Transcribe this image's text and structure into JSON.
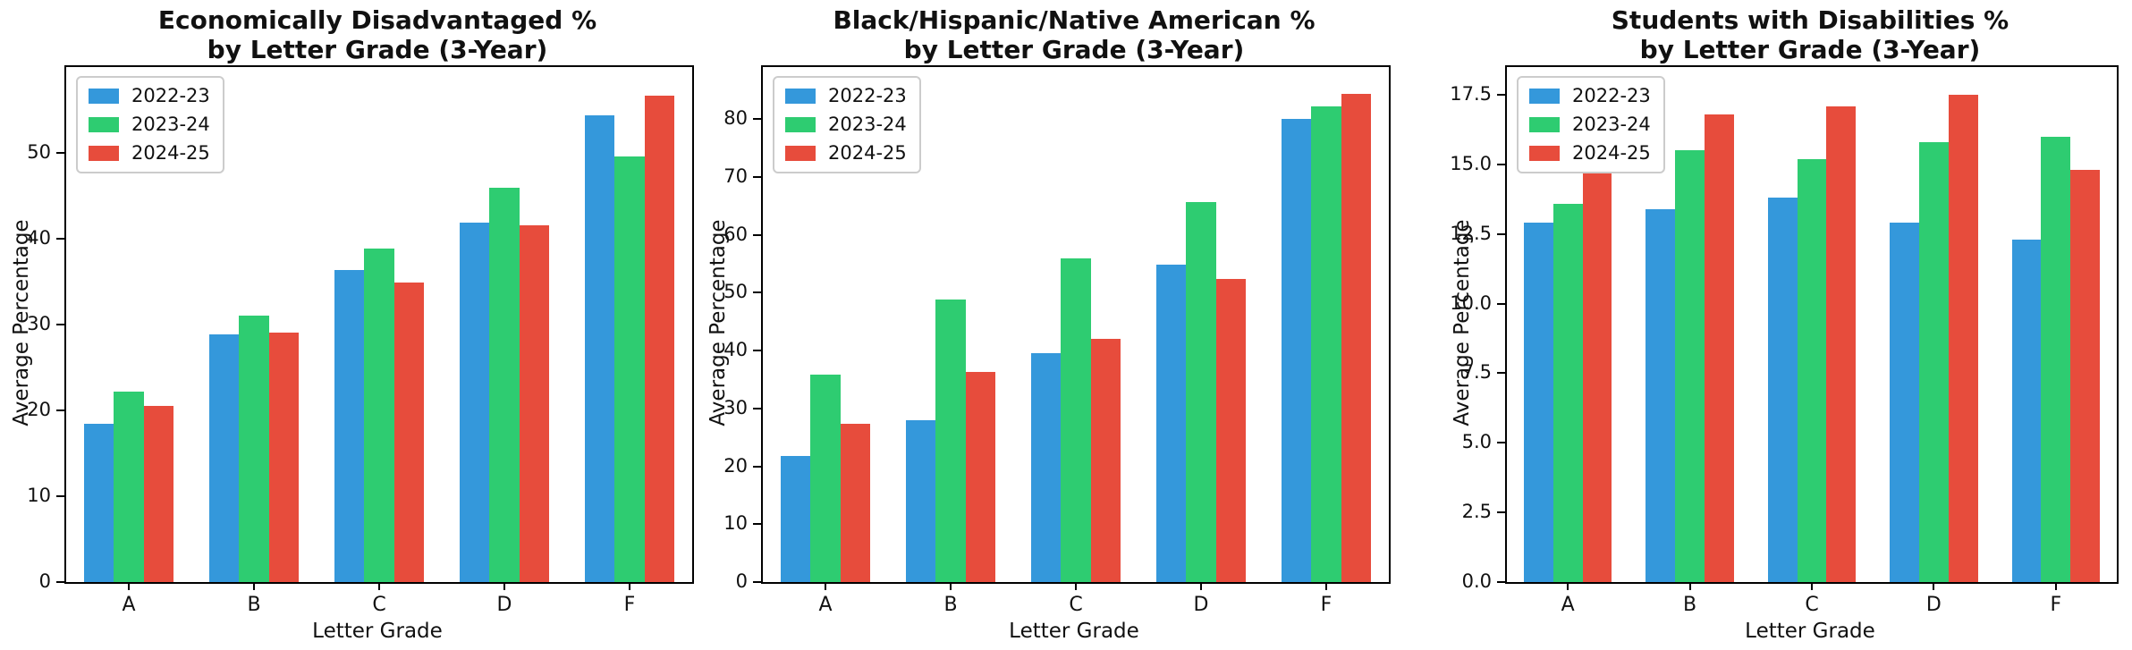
{
  "figure": {
    "background": "#ffffff",
    "spine_color": "#000000",
    "legend_border_color": "#cccccc",
    "series_colors": {
      "2022-23": "#3498db",
      "2023-24": "#2ecc71",
      "2024-25": "#e74c3c"
    }
  },
  "chart_data": [
    {
      "type": "bar",
      "title_line1": "Economically Disadvantaged %",
      "title_line2": "by Letter Grade (3-Year)",
      "xlabel": "Letter Grade",
      "ylabel": "Average Percentage",
      "categories": [
        "A",
        "B",
        "C",
        "D",
        "F"
      ],
      "series": [
        {
          "name": "2022-23",
          "color": "#3498db",
          "values": [
            18.4,
            28.9,
            36.4,
            41.9,
            54.4
          ]
        },
        {
          "name": "2023-24",
          "color": "#2ecc71",
          "values": [
            22.2,
            31.0,
            38.9,
            45.9,
            49.6
          ]
        },
        {
          "name": "2024-25",
          "color": "#e74c3c",
          "values": [
            20.5,
            29.1,
            34.9,
            41.6,
            56.7
          ]
        }
      ],
      "ylim": [
        0,
        60
      ],
      "yticks": [
        0,
        10,
        20,
        30,
        40,
        50
      ],
      "ytick_format": "int",
      "legend_position": "upper left",
      "grid": false
    },
    {
      "type": "bar",
      "title_line1": "Black/Hispanic/Native American %",
      "title_line2": "by Letter Grade (3-Year)",
      "xlabel": "Letter Grade",
      "ylabel": "Average Percentage",
      "categories": [
        "A",
        "B",
        "C",
        "D",
        "F"
      ],
      "series": [
        {
          "name": "2022-23",
          "color": "#3498db",
          "values": [
            21.8,
            27.9,
            39.5,
            54.9,
            80.0
          ]
        },
        {
          "name": "2023-24",
          "color": "#2ecc71",
          "values": [
            35.8,
            48.8,
            55.9,
            65.7,
            82.2
          ]
        },
        {
          "name": "2024-25",
          "color": "#e74c3c",
          "values": [
            27.3,
            36.3,
            42.0,
            52.4,
            84.4
          ]
        }
      ],
      "ylim": [
        0,
        89
      ],
      "yticks": [
        0,
        10,
        20,
        30,
        40,
        50,
        60,
        70,
        80
      ],
      "ytick_format": "int",
      "legend_position": "upper left",
      "grid": false
    },
    {
      "type": "bar",
      "title_line1": "Students with Disabilities %",
      "title_line2": "by Letter Grade (3-Year)",
      "xlabel": "Letter Grade",
      "ylabel": "Average Percentage",
      "categories": [
        "A",
        "B",
        "C",
        "D",
        "F"
      ],
      "series": [
        {
          "name": "2022-23",
          "color": "#3498db",
          "values": [
            12.9,
            13.4,
            13.8,
            12.9,
            12.3
          ]
        },
        {
          "name": "2023-24",
          "color": "#2ecc71",
          "values": [
            13.6,
            15.5,
            15.2,
            15.8,
            16.0
          ]
        },
        {
          "name": "2024-25",
          "color": "#e74c3c",
          "values": [
            14.9,
            16.8,
            17.1,
            17.5,
            14.8
          ]
        }
      ],
      "ylim": [
        0,
        18.5
      ],
      "yticks": [
        0.0,
        2.5,
        5.0,
        7.5,
        10.0,
        12.5,
        15.0,
        17.5
      ],
      "ytick_format": "dec1",
      "legend_position": "upper left",
      "grid": false
    }
  ]
}
